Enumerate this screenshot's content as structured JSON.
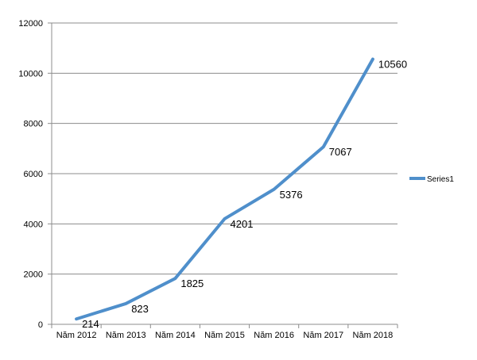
{
  "chart_data": {
    "type": "line",
    "categories": [
      "Năm 2012",
      "Năm 2013",
      "Năm 2014",
      "Năm 2015",
      "Năm 2016",
      "Năm 2017",
      "Năm 2018"
    ],
    "series": [
      {
        "name": "Series1",
        "values": [
          214,
          823,
          1825,
          4201,
          5376,
          7067,
          10560
        ],
        "color": "#4f8fcb"
      }
    ],
    "data_labels": [
      "214",
      "823",
      "1825",
      "4201",
      "5376",
      "7067",
      "10560"
    ],
    "yticks": [
      0,
      2000,
      4000,
      6000,
      8000,
      10000,
      12000
    ],
    "ytick_labels": [
      "0",
      "2000",
      "4000",
      "6000",
      "8000",
      "10000",
      "12000"
    ],
    "ylim": [
      0,
      12000
    ],
    "grid": true,
    "legend": {
      "position": "right",
      "labels": [
        "Series1"
      ]
    },
    "title": "",
    "xlabel": "",
    "ylabel": ""
  }
}
